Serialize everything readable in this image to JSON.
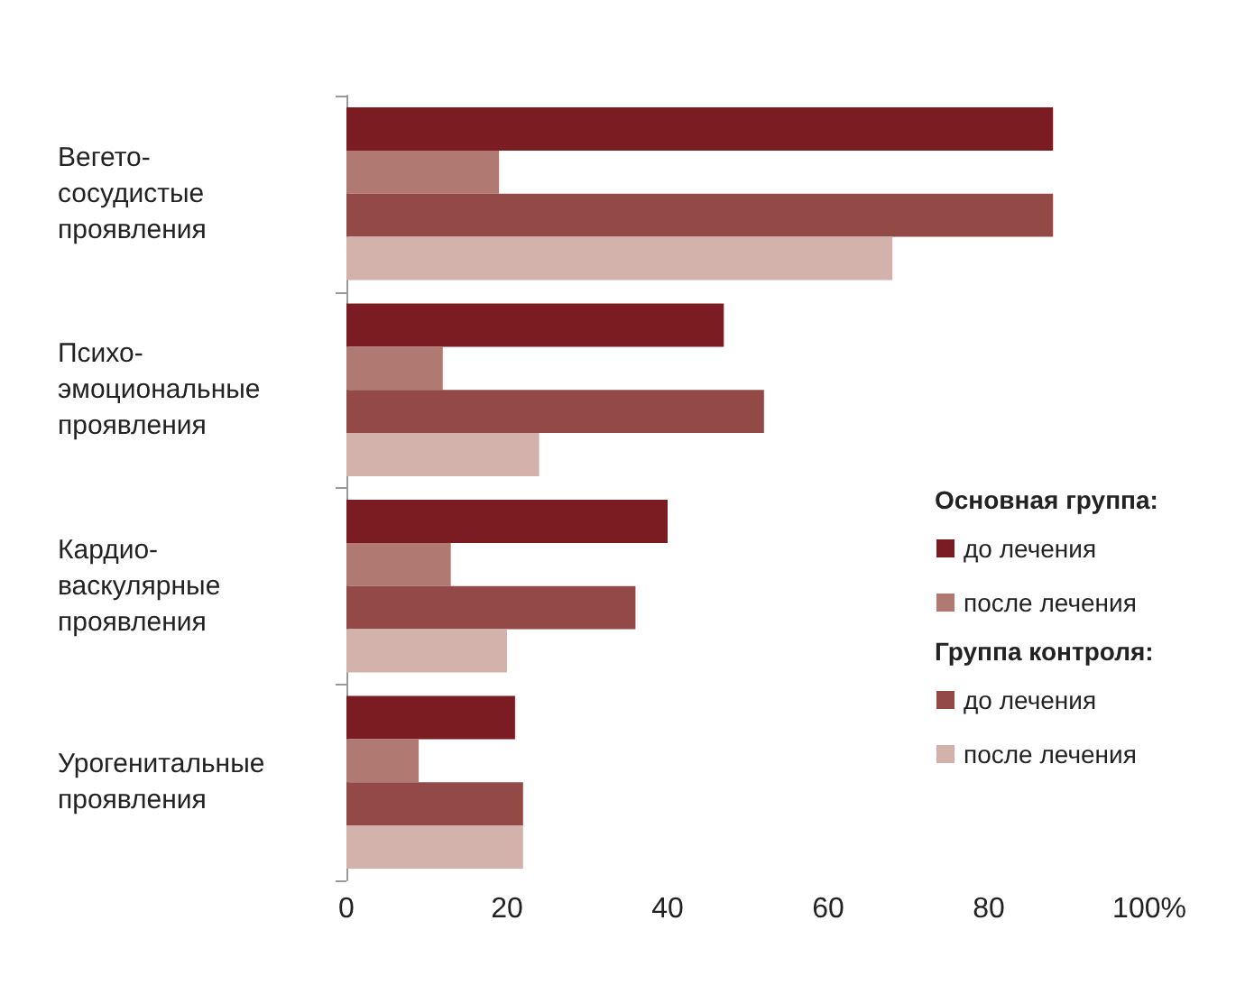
{
  "chart_data": {
    "type": "bar",
    "orientation": "horizontal",
    "categories": [
      "Вегето-\nсосудистые\nпроявления",
      "Психо-\nэмоциональные\nпроявления",
      "Кардио-\nваскулярные\nпроявления",
      "Урогенитальные\nпроявления"
    ],
    "legend_title": [
      "Основная группа:",
      "Группа контроля:"
    ],
    "series": [
      {
        "name": "до лечения",
        "color": "#7b1c22",
        "values": [
          88,
          47,
          40,
          21
        ]
      },
      {
        "name": "после лечения",
        "color": "#b07a72",
        "values": [
          19,
          12,
          13,
          9
        ]
      },
      {
        "name": "до лечения",
        "color": "#934a47",
        "values": [
          88,
          52,
          36,
          22
        ]
      },
      {
        "name": "после лечения",
        "color": "#d4b2ac",
        "values": [
          68,
          24,
          20,
          22
        ]
      }
    ],
    "xlim": [
      0,
      100
    ],
    "xticks": [
      0,
      20,
      40,
      60,
      80,
      {
        "value": 100,
        "label": "100%"
      }
    ],
    "grid": false,
    "legend": "right"
  }
}
